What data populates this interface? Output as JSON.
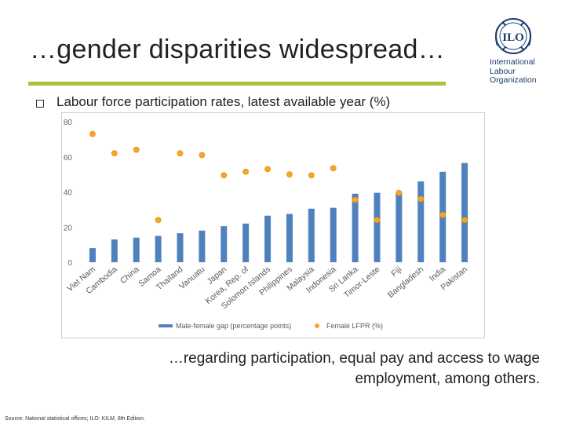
{
  "slide": {
    "title": "…gender disparities widespread…",
    "subtitle": "Labour force participation rates, latest available year (%)",
    "caption_line1": "…regarding participation,  equal pay and access to wage",
    "caption_line2": "employment, among others.",
    "source": "Source:  National statistical offices; ILO: KILM, 8th Edition."
  },
  "logo": {
    "acronym": "ILO",
    "name_line1": "International",
    "name_line2": "Labour",
    "name_line3": "Organization",
    "icon": "ilo-emblem-icon"
  },
  "colors": {
    "bar": "#4f81bd",
    "marker": "#f5a623",
    "accent_rule": "#a9c23a",
    "grid": "#e6e6e6"
  },
  "chart_data": {
    "type": "bar",
    "categories": [
      "Viet Nam",
      "Cambodia",
      "China",
      "Samoa",
      "Thailand",
      "Vanuatu",
      "Japan",
      "Korea, Rep. of",
      "Solomon Islands",
      "Philippines",
      "Malaysia",
      "Indonesia",
      "Sri Lanka",
      "Timor-Leste",
      "Fiji",
      "Bangladesh",
      "India",
      "Pakistan"
    ],
    "series": [
      {
        "name": "Male-female gap (percentage points)",
        "kind": "bar",
        "values": [
          8,
          13,
          14,
          15,
          16.5,
          18,
          20.5,
          22,
          26.5,
          27.5,
          30.5,
          31,
          39,
          39.5,
          40,
          46,
          51.5,
          56.5
        ]
      },
      {
        "name": "Female LFPR (%)",
        "kind": "marker",
        "values": [
          73,
          62,
          64,
          24,
          62,
          61,
          49.5,
          51.5,
          53,
          50,
          49.5,
          53.5,
          35.5,
          24,
          39.5,
          36,
          27,
          24
        ]
      }
    ],
    "yticks": [
      "0",
      "20",
      "40",
      "60",
      "80"
    ],
    "ylim": [
      0,
      80
    ],
    "grid": false,
    "legend_position": "bottom"
  }
}
